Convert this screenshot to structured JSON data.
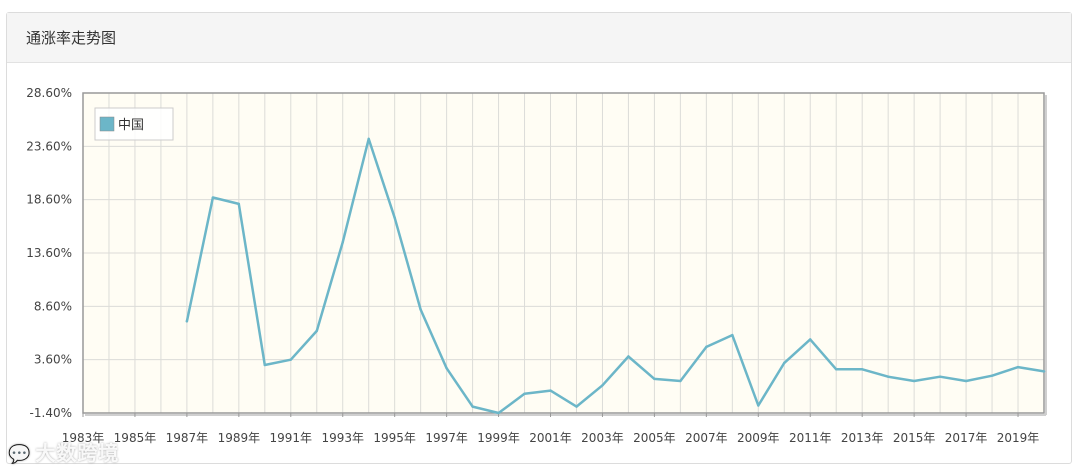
{
  "panel": {
    "title": "通涨率走势图"
  },
  "watermark": {
    "icon": "chat-bubble-icon",
    "text": "大数跨境"
  },
  "colors": {
    "series": "#6cb6c8",
    "plot_bg": "#fffdf4",
    "grid": "#dcdcd8",
    "axis": "#999999"
  },
  "chart_data": {
    "type": "line",
    "title": "",
    "xlabel": "",
    "ylabel": "",
    "x": [
      1983,
      1984,
      1985,
      1986,
      1987,
      1988,
      1989,
      1990,
      1991,
      1992,
      1993,
      1994,
      1995,
      1996,
      1997,
      1998,
      1999,
      2000,
      2001,
      2002,
      2003,
      2004,
      2005,
      2006,
      2007,
      2008,
      2009,
      2010,
      2011,
      2012,
      2013,
      2014,
      2015,
      2016,
      2017,
      2018,
      2019,
      2020
    ],
    "x_tick_labels": [
      "1983年",
      "1985年",
      "1987年",
      "1989年",
      "1991年",
      "1993年",
      "1995年",
      "1997年",
      "1999年",
      "2001年",
      "2003年",
      "2005年",
      "2007年",
      "2009年",
      "2011年",
      "2013年",
      "2015年",
      "2017年",
      "2019年"
    ],
    "y_tick_labels": [
      "-1.40%",
      "3.60%",
      "8.60%",
      "13.60%",
      "18.60%",
      "23.60%",
      "28.60%"
    ],
    "ylim": [
      -1.4,
      28.6
    ],
    "grid": true,
    "legend_position": "top-left",
    "series": [
      {
        "name": "中国",
        "values": [
          null,
          null,
          null,
          null,
          7.2,
          18.8,
          18.2,
          3.1,
          3.6,
          6.3,
          14.6,
          24.3,
          16.9,
          8.3,
          2.8,
          -0.8,
          -1.4,
          0.4,
          0.7,
          -0.8,
          1.2,
          3.9,
          1.8,
          1.6,
          4.8,
          5.9,
          -0.7,
          3.3,
          5.5,
          2.7,
          2.7,
          2.0,
          1.6,
          2.0,
          1.6,
          2.1,
          2.9,
          2.5
        ]
      }
    ]
  }
}
